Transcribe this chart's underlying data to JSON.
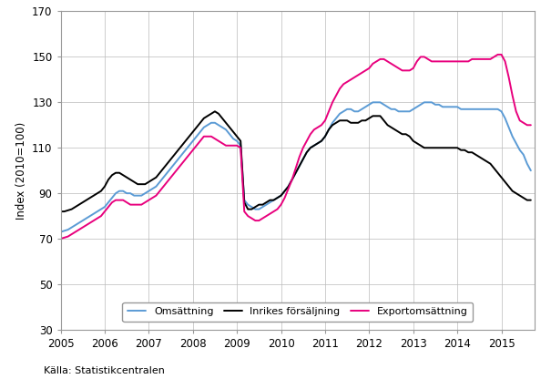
{
  "ylabel": "Index (2010=100)",
  "source": "Källa: Statistikcentralen",
  "ylim": [
    30,
    170
  ],
  "yticks": [
    30,
    50,
    70,
    90,
    110,
    130,
    150,
    170
  ],
  "xlim": [
    2005.0,
    2015.75
  ],
  "xtick_labels": [
    "2005",
    "2006",
    "2007",
    "2008",
    "2009",
    "2010",
    "2011",
    "2012",
    "2013",
    "2014",
    "2015"
  ],
  "xtick_positions": [
    2005,
    2006,
    2007,
    2008,
    2009,
    2010,
    2011,
    2012,
    2013,
    2014,
    2015
  ],
  "line_colors": {
    "omv": "#5B9BD5",
    "inr": "#000000",
    "exp": "#E8007D"
  },
  "line_widths": {
    "omv": 1.4,
    "inr": 1.4,
    "exp": 1.4
  },
  "legend_labels": [
    "Omsättning",
    "Inrikes försäljning",
    "Exportomsättning"
  ],
  "omv_x": [
    2005.0,
    2005.083,
    2005.167,
    2005.25,
    2005.333,
    2005.417,
    2005.5,
    2005.583,
    2005.667,
    2005.75,
    2005.833,
    2005.917,
    2006.0,
    2006.083,
    2006.167,
    2006.25,
    2006.333,
    2006.417,
    2006.5,
    2006.583,
    2006.667,
    2006.75,
    2006.833,
    2006.917,
    2007.0,
    2007.083,
    2007.167,
    2007.25,
    2007.333,
    2007.417,
    2007.5,
    2007.583,
    2007.667,
    2007.75,
    2007.833,
    2007.917,
    2008.0,
    2008.083,
    2008.167,
    2008.25,
    2008.333,
    2008.417,
    2008.5,
    2008.583,
    2008.667,
    2008.75,
    2008.833,
    2008.917,
    2009.0,
    2009.083,
    2009.167,
    2009.25,
    2009.333,
    2009.417,
    2009.5,
    2009.583,
    2009.667,
    2009.75,
    2009.833,
    2009.917,
    2010.0,
    2010.083,
    2010.167,
    2010.25,
    2010.333,
    2010.417,
    2010.5,
    2010.583,
    2010.667,
    2010.75,
    2010.833,
    2010.917,
    2011.0,
    2011.083,
    2011.167,
    2011.25,
    2011.333,
    2011.417,
    2011.5,
    2011.583,
    2011.667,
    2011.75,
    2011.833,
    2011.917,
    2012.0,
    2012.083,
    2012.167,
    2012.25,
    2012.333,
    2012.417,
    2012.5,
    2012.583,
    2012.667,
    2012.75,
    2012.833,
    2012.917,
    2013.0,
    2013.083,
    2013.167,
    2013.25,
    2013.333,
    2013.417,
    2013.5,
    2013.583,
    2013.667,
    2013.75,
    2013.833,
    2013.917,
    2014.0,
    2014.083,
    2014.167,
    2014.25,
    2014.333,
    2014.417,
    2014.5,
    2014.583,
    2014.667,
    2014.75,
    2014.833,
    2014.917,
    2015.0,
    2015.083,
    2015.167,
    2015.25,
    2015.333,
    2015.417,
    2015.5,
    2015.583,
    2015.667
  ],
  "omv_y": [
    73,
    73.5,
    74,
    75,
    76,
    77,
    78,
    79,
    80,
    81,
    82,
    83,
    84,
    86,
    88,
    90,
    91,
    91,
    90,
    90,
    89,
    89,
    89,
    90,
    91,
    92,
    93,
    95,
    97,
    99,
    101,
    103,
    105,
    107,
    109,
    111,
    113,
    115,
    117,
    119,
    120,
    121,
    121,
    120,
    119,
    118,
    116,
    114,
    113,
    111,
    87,
    85,
    84,
    83,
    83,
    84,
    85,
    86,
    87,
    88,
    89,
    91,
    93,
    96,
    99,
    102,
    105,
    108,
    110,
    111,
    112,
    113,
    115,
    118,
    121,
    123,
    125,
    126,
    127,
    127,
    126,
    126,
    127,
    128,
    129,
    130,
    130,
    130,
    129,
    128,
    127,
    127,
    126,
    126,
    126,
    126,
    127,
    128,
    129,
    130,
    130,
    130,
    129,
    129,
    128,
    128,
    128,
    128,
    128,
    127,
    127,
    127,
    127,
    127,
    127,
    127,
    127,
    127,
    127,
    127,
    126,
    123,
    119,
    115,
    112,
    109,
    107,
    103,
    100
  ],
  "inr_x": [
    2005.0,
    2005.083,
    2005.167,
    2005.25,
    2005.333,
    2005.417,
    2005.5,
    2005.583,
    2005.667,
    2005.75,
    2005.833,
    2005.917,
    2006.0,
    2006.083,
    2006.167,
    2006.25,
    2006.333,
    2006.417,
    2006.5,
    2006.583,
    2006.667,
    2006.75,
    2006.833,
    2006.917,
    2007.0,
    2007.083,
    2007.167,
    2007.25,
    2007.333,
    2007.417,
    2007.5,
    2007.583,
    2007.667,
    2007.75,
    2007.833,
    2007.917,
    2008.0,
    2008.083,
    2008.167,
    2008.25,
    2008.333,
    2008.417,
    2008.5,
    2008.583,
    2008.667,
    2008.75,
    2008.833,
    2008.917,
    2009.0,
    2009.083,
    2009.167,
    2009.25,
    2009.333,
    2009.417,
    2009.5,
    2009.583,
    2009.667,
    2009.75,
    2009.833,
    2009.917,
    2010.0,
    2010.083,
    2010.167,
    2010.25,
    2010.333,
    2010.417,
    2010.5,
    2010.583,
    2010.667,
    2010.75,
    2010.833,
    2010.917,
    2011.0,
    2011.083,
    2011.167,
    2011.25,
    2011.333,
    2011.417,
    2011.5,
    2011.583,
    2011.667,
    2011.75,
    2011.833,
    2011.917,
    2012.0,
    2012.083,
    2012.167,
    2012.25,
    2012.333,
    2012.417,
    2012.5,
    2012.583,
    2012.667,
    2012.75,
    2012.833,
    2012.917,
    2013.0,
    2013.083,
    2013.167,
    2013.25,
    2013.333,
    2013.417,
    2013.5,
    2013.583,
    2013.667,
    2013.75,
    2013.833,
    2013.917,
    2014.0,
    2014.083,
    2014.167,
    2014.25,
    2014.333,
    2014.417,
    2014.5,
    2014.583,
    2014.667,
    2014.75,
    2014.833,
    2014.917,
    2015.0,
    2015.083,
    2015.167,
    2015.25,
    2015.333,
    2015.417,
    2015.5,
    2015.583,
    2015.667
  ],
  "inr_y": [
    82,
    82,
    82.5,
    83,
    84,
    85,
    86,
    87,
    88,
    89,
    90,
    91,
    93,
    96,
    98,
    99,
    99,
    98,
    97,
    96,
    95,
    94,
    94,
    94,
    95,
    96,
    97,
    99,
    101,
    103,
    105,
    107,
    109,
    111,
    113,
    115,
    117,
    119,
    121,
    123,
    124,
    125,
    126,
    125,
    123,
    121,
    119,
    117,
    115,
    113,
    86,
    83,
    83,
    84,
    85,
    85,
    86,
    87,
    87,
    88,
    89,
    91,
    93,
    96,
    99,
    102,
    105,
    108,
    110,
    111,
    112,
    113,
    115,
    118,
    120,
    121,
    122,
    122,
    122,
    121,
    121,
    121,
    122,
    122,
    123,
    124,
    124,
    124,
    122,
    120,
    119,
    118,
    117,
    116,
    116,
    115,
    113,
    112,
    111,
    110,
    110,
    110,
    110,
    110,
    110,
    110,
    110,
    110,
    110,
    109,
    109,
    108,
    108,
    107,
    106,
    105,
    104,
    103,
    101,
    99,
    97,
    95,
    93,
    91,
    90,
    89,
    88,
    87,
    87
  ],
  "exp_x": [
    2005.0,
    2005.083,
    2005.167,
    2005.25,
    2005.333,
    2005.417,
    2005.5,
    2005.583,
    2005.667,
    2005.75,
    2005.833,
    2005.917,
    2006.0,
    2006.083,
    2006.167,
    2006.25,
    2006.333,
    2006.417,
    2006.5,
    2006.583,
    2006.667,
    2006.75,
    2006.833,
    2006.917,
    2007.0,
    2007.083,
    2007.167,
    2007.25,
    2007.333,
    2007.417,
    2007.5,
    2007.583,
    2007.667,
    2007.75,
    2007.833,
    2007.917,
    2008.0,
    2008.083,
    2008.167,
    2008.25,
    2008.333,
    2008.417,
    2008.5,
    2008.583,
    2008.667,
    2008.75,
    2008.833,
    2008.917,
    2009.0,
    2009.083,
    2009.167,
    2009.25,
    2009.333,
    2009.417,
    2009.5,
    2009.583,
    2009.667,
    2009.75,
    2009.833,
    2009.917,
    2010.0,
    2010.083,
    2010.167,
    2010.25,
    2010.333,
    2010.417,
    2010.5,
    2010.583,
    2010.667,
    2010.75,
    2010.833,
    2010.917,
    2011.0,
    2011.083,
    2011.167,
    2011.25,
    2011.333,
    2011.417,
    2011.5,
    2011.583,
    2011.667,
    2011.75,
    2011.833,
    2011.917,
    2012.0,
    2012.083,
    2012.167,
    2012.25,
    2012.333,
    2012.417,
    2012.5,
    2012.583,
    2012.667,
    2012.75,
    2012.833,
    2012.917,
    2013.0,
    2013.083,
    2013.167,
    2013.25,
    2013.333,
    2013.417,
    2013.5,
    2013.583,
    2013.667,
    2013.75,
    2013.833,
    2013.917,
    2014.0,
    2014.083,
    2014.167,
    2014.25,
    2014.333,
    2014.417,
    2014.5,
    2014.583,
    2014.667,
    2014.75,
    2014.833,
    2014.917,
    2015.0,
    2015.083,
    2015.167,
    2015.25,
    2015.333,
    2015.417,
    2015.5,
    2015.583,
    2015.667
  ],
  "exp_y": [
    70,
    70.5,
    71,
    72,
    73,
    74,
    75,
    76,
    77,
    78,
    79,
    80,
    82,
    84,
    86,
    87,
    87,
    87,
    86,
    85,
    85,
    85,
    85,
    86,
    87,
    88,
    89,
    91,
    93,
    95,
    97,
    99,
    101,
    103,
    105,
    107,
    109,
    111,
    113,
    115,
    115,
    115,
    114,
    113,
    112,
    111,
    111,
    111,
    111,
    110,
    82,
    80,
    79,
    78,
    78,
    79,
    80,
    81,
    82,
    83,
    85,
    88,
    92,
    96,
    101,
    106,
    110,
    113,
    116,
    118,
    119,
    120,
    122,
    126,
    130,
    133,
    136,
    138,
    139,
    140,
    141,
    142,
    143,
    144,
    145,
    147,
    148,
    149,
    149,
    148,
    147,
    146,
    145,
    144,
    144,
    144,
    145,
    148,
    150,
    150,
    149,
    148,
    148,
    148,
    148,
    148,
    148,
    148,
    148,
    148,
    148,
    148,
    149,
    149,
    149,
    149,
    149,
    149,
    150,
    151,
    151,
    148,
    141,
    133,
    126,
    122,
    121,
    120,
    120
  ],
  "grid_color": "#bbbbbb",
  "background_color": "#ffffff",
  "spine_color": "#999999"
}
